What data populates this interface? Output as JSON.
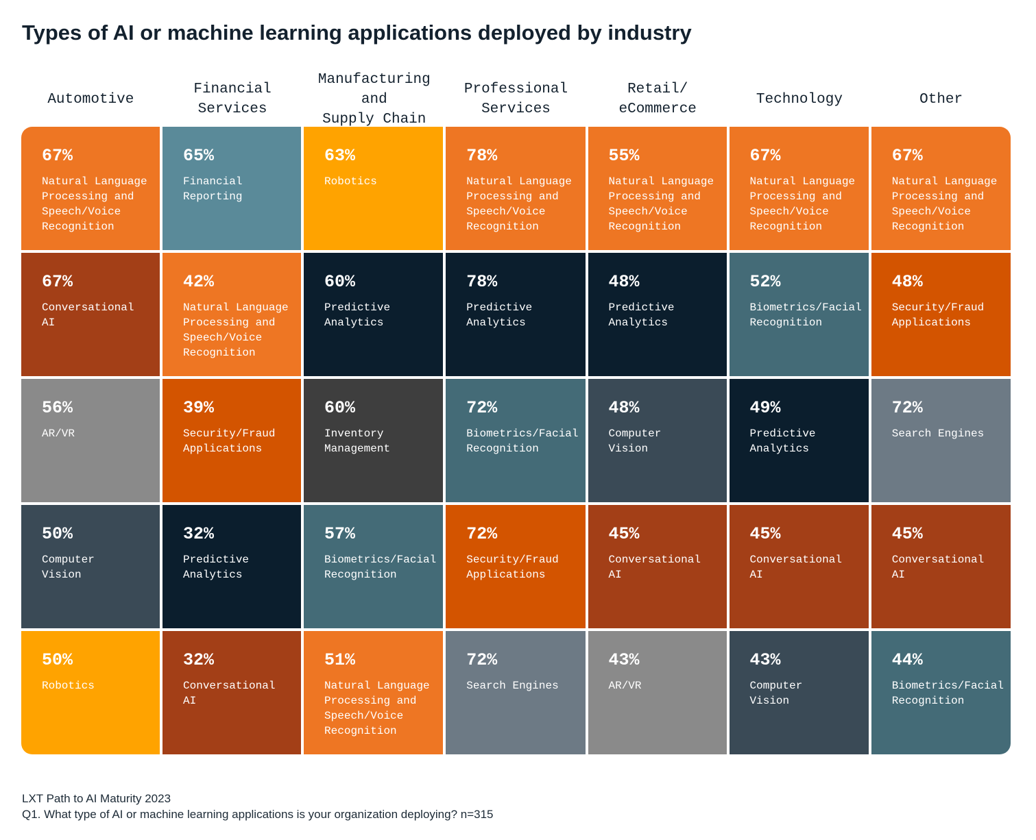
{
  "title": "Types of AI or machine learning applications deployed by industry",
  "source": "LXT Path to AI Maturity 2023",
  "note": "Q1. What type of AI or machine learning applications is your organization deploying? n=315",
  "chart_data": {
    "type": "table",
    "title": "Types of AI or machine learning applications deployed by industry",
    "unit": "%",
    "columns": [
      "Automotive",
      "Financial\nServices",
      "Manufacturing and\nSupply Chain",
      "Professional\nServices",
      "Retail/\neCommerce",
      "Technology",
      "Other"
    ],
    "colors": {
      "Natural Language\nProcessing and\nSpeech/Voice\nRecognition": "#EE7623",
      "Financial\nReporting": "#5A8A99",
      "Robotics": "#FFA300",
      "Conversational\nAI": "#A33F17",
      "Predictive\nAnalytics": "#0B1E2D",
      "AR/VR": "#8A8A8A",
      "Security/Fraud\nApplications": "#D35400",
      "Inventory\nManagement": "#3E3E3E",
      "Biometrics/Facial\nRecognition": "#446B77",
      "Computer\nVision": "#3A4A56",
      "Search Engines": "#6D7A85"
    },
    "cells": [
      [
        {
          "value": 67,
          "label": "Natural Language\nProcessing and\nSpeech/Voice\nRecognition"
        },
        {
          "value": 65,
          "label": "Financial\nReporting"
        },
        {
          "value": 63,
          "label": "Robotics"
        },
        {
          "value": 78,
          "label": "Natural Language\nProcessing and\nSpeech/Voice\nRecognition"
        },
        {
          "value": 55,
          "label": "Natural Language\nProcessing and\nSpeech/Voice\nRecognition"
        },
        {
          "value": 67,
          "label": "Natural Language\nProcessing and\nSpeech/Voice\nRecognition"
        },
        {
          "value": 67,
          "label": "Natural Language\nProcessing and\nSpeech/Voice\nRecognition"
        }
      ],
      [
        {
          "value": 67,
          "label": "Conversational\nAI"
        },
        {
          "value": 42,
          "label": "Natural Language\nProcessing and\nSpeech/Voice\nRecognition"
        },
        {
          "value": 60,
          "label": "Predictive\nAnalytics"
        },
        {
          "value": 78,
          "label": "Predictive\nAnalytics"
        },
        {
          "value": 48,
          "label": "Predictive\nAnalytics"
        },
        {
          "value": 52,
          "label": "Biometrics/Facial\nRecognition"
        },
        {
          "value": 48,
          "label": "Security/Fraud\nApplications"
        }
      ],
      [
        {
          "value": 56,
          "label": "AR/VR"
        },
        {
          "value": 39,
          "label": "Security/Fraud\nApplications"
        },
        {
          "value": 60,
          "label": "Inventory\nManagement"
        },
        {
          "value": 72,
          "label": "Biometrics/Facial\nRecognition"
        },
        {
          "value": 48,
          "label": "Computer\nVision"
        },
        {
          "value": 49,
          "label": "Predictive\nAnalytics"
        },
        {
          "value": 72,
          "label": "Search Engines"
        }
      ],
      [
        {
          "value": 50,
          "label": "Computer\nVision"
        },
        {
          "value": 32,
          "label": "Predictive\nAnalytics"
        },
        {
          "value": 57,
          "label": "Biometrics/Facial\nRecognition"
        },
        {
          "value": 72,
          "label": "Security/Fraud\nApplications"
        },
        {
          "value": 45,
          "label": "Conversational\nAI"
        },
        {
          "value": 45,
          "label": "Conversational\nAI"
        },
        {
          "value": 45,
          "label": "Conversational\nAI"
        }
      ],
      [
        {
          "value": 50,
          "label": "Robotics"
        },
        {
          "value": 32,
          "label": "Conversational\nAI"
        },
        {
          "value": 51,
          "label": "Natural Language\nProcessing and\nSpeech/Voice\nRecognition"
        },
        {
          "value": 72,
          "label": "Search Engines"
        },
        {
          "value": 43,
          "label": "AR/VR"
        },
        {
          "value": 43,
          "label": "Computer\nVision"
        },
        {
          "value": 44,
          "label": "Biometrics/Facial\nRecognition"
        }
      ]
    ]
  }
}
